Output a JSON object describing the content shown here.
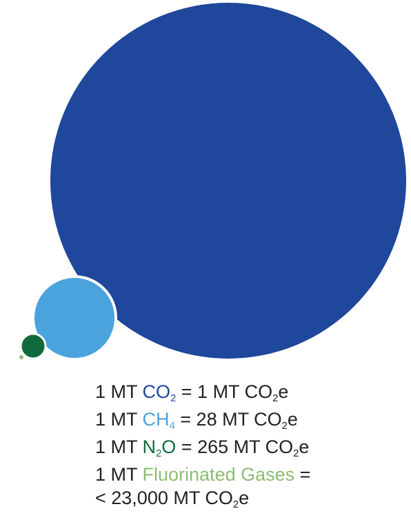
{
  "gases": [
    {
      "name": "CO2",
      "gwp": 1,
      "color": "#1f479b"
    },
    {
      "name": "CH4",
      "gwp": 28,
      "color": "#4aa3dc"
    },
    {
      "name": "N2O",
      "gwp": 265,
      "color": "#0f6a3b"
    },
    {
      "name": "Fluorinated Gases",
      "gwp": 23000,
      "color": "#8dbd72"
    }
  ],
  "equivalences": [
    {
      "prefix": "1 MT ",
      "gas_main": "CO",
      "gas_sub": "2",
      "gas_tail": "",
      "rhs_prefix": " = 1 MT CO",
      "rhs_sub": "2",
      "rhs_tail": "e"
    },
    {
      "prefix": "1 MT ",
      "gas_main": "CH",
      "gas_sub": "4",
      "gas_tail": "",
      "rhs_prefix": " = 28 MT CO",
      "rhs_sub": "2",
      "rhs_tail": "e"
    },
    {
      "prefix": "1 MT ",
      "gas_main": "N",
      "gas_sub": "2",
      "gas_tail": "O",
      "rhs_prefix": " = 265 MT CO",
      "rhs_sub": "2",
      "rhs_tail": "e"
    },
    {
      "prefix": "1 MT ",
      "gas_main": "Fluorinated Gases",
      "rhs_prefix": " =",
      "line2_prefix": "< 23,000 MT CO",
      "line2_sub": "2",
      "line2_tail": "e"
    }
  ]
}
